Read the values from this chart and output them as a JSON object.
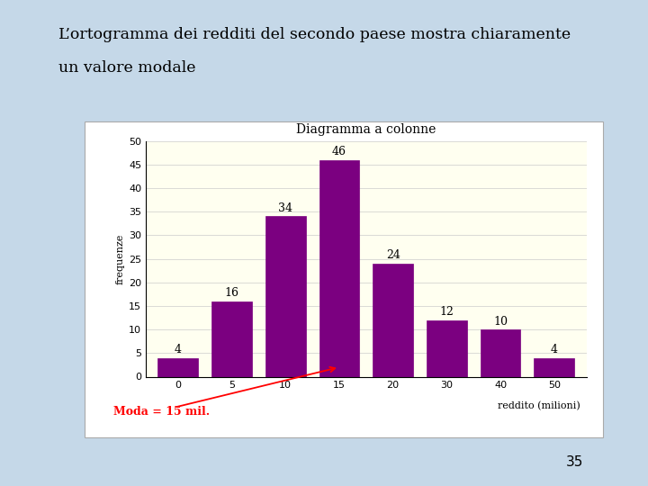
{
  "title": "Diagramma a colonne",
  "xlabel": "reddito (milioni)",
  "ylabel": "frequenze",
  "categories": [
    0,
    5,
    10,
    15,
    20,
    30,
    40,
    50
  ],
  "x_positions": [
    0,
    1,
    2,
    3,
    4,
    5,
    6,
    7
  ],
  "values": [
    4,
    16,
    34,
    46,
    24,
    12,
    10,
    4
  ],
  "bar_color": "#7B0080",
  "bg_color": "#FFFFF0",
  "outer_bg": "#C5D8E8",
  "white_box_bg": "#FFFFFF",
  "ylim": [
    0,
    50
  ],
  "yticks": [
    0,
    5,
    10,
    15,
    20,
    25,
    30,
    35,
    40,
    45,
    50
  ],
  "moda_label": "Moda = 15 mil.",
  "moda_color": "#FF0000",
  "slide_title_line1": "L’ortogramma dei redditi del secondo paese mostra chiaramente",
  "slide_title_line2": "un valore modale",
  "page_number": "35",
  "title_fontsize": 10,
  "axis_label_fontsize": 8,
  "tick_fontsize": 8,
  "bar_label_fontsize": 9
}
